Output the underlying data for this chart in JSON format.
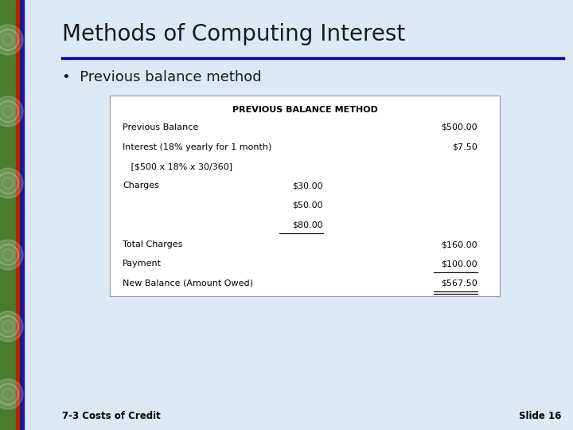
{
  "title": "Methods of Computing Interest",
  "subtitle": "•  Previous balance method",
  "table_title": "PREVIOUS BALANCE METHOD",
  "footer_left": "7-3 Costs of Credit",
  "footer_right": "Slide 16",
  "slide_bg": "#dce9f5",
  "white_bg": "#ffffff",
  "title_color": "#1a1a1a",
  "left_bar_green": "#4a7c2f",
  "left_bar_blue": "#1a1a8c",
  "left_bar_red": "#bb2200",
  "divider_color": "#00008b",
  "table_rows": [
    {
      "label": "Previous Balance",
      "col1": "",
      "col2": "$500.00",
      "ul1": false,
      "ul2": false,
      "double2": false
    },
    {
      "label": "Interest (18% yearly for 1 month)",
      "col1": "",
      "col2": "$7.50",
      "ul1": false,
      "ul2": false,
      "double2": false
    },
    {
      "label": "   [$500 x 18% x 30/360]",
      "col1": "",
      "col2": "",
      "ul1": false,
      "ul2": false,
      "double2": false
    },
    {
      "label": "Charges",
      "col1": "$30.00",
      "col2": "",
      "ul1": false,
      "ul2": false,
      "double2": false
    },
    {
      "label": "",
      "col1": "$50.00",
      "col2": "",
      "ul1": false,
      "ul2": false,
      "double2": false
    },
    {
      "label": "",
      "col1": "$80.00",
      "col2": "",
      "ul1": true,
      "ul2": false,
      "double2": false
    },
    {
      "label": "Total Charges",
      "col1": "",
      "col2": "$160.00",
      "ul1": false,
      "ul2": false,
      "double2": false
    },
    {
      "label": "Payment",
      "col1": "",
      "col2": "$100.00",
      "ul1": false,
      "ul2": true,
      "double2": false
    },
    {
      "label": "New Balance (Amount Owed)",
      "col1": "",
      "col2": "$567.50",
      "ul1": false,
      "ul2": true,
      "double2": true
    }
  ]
}
